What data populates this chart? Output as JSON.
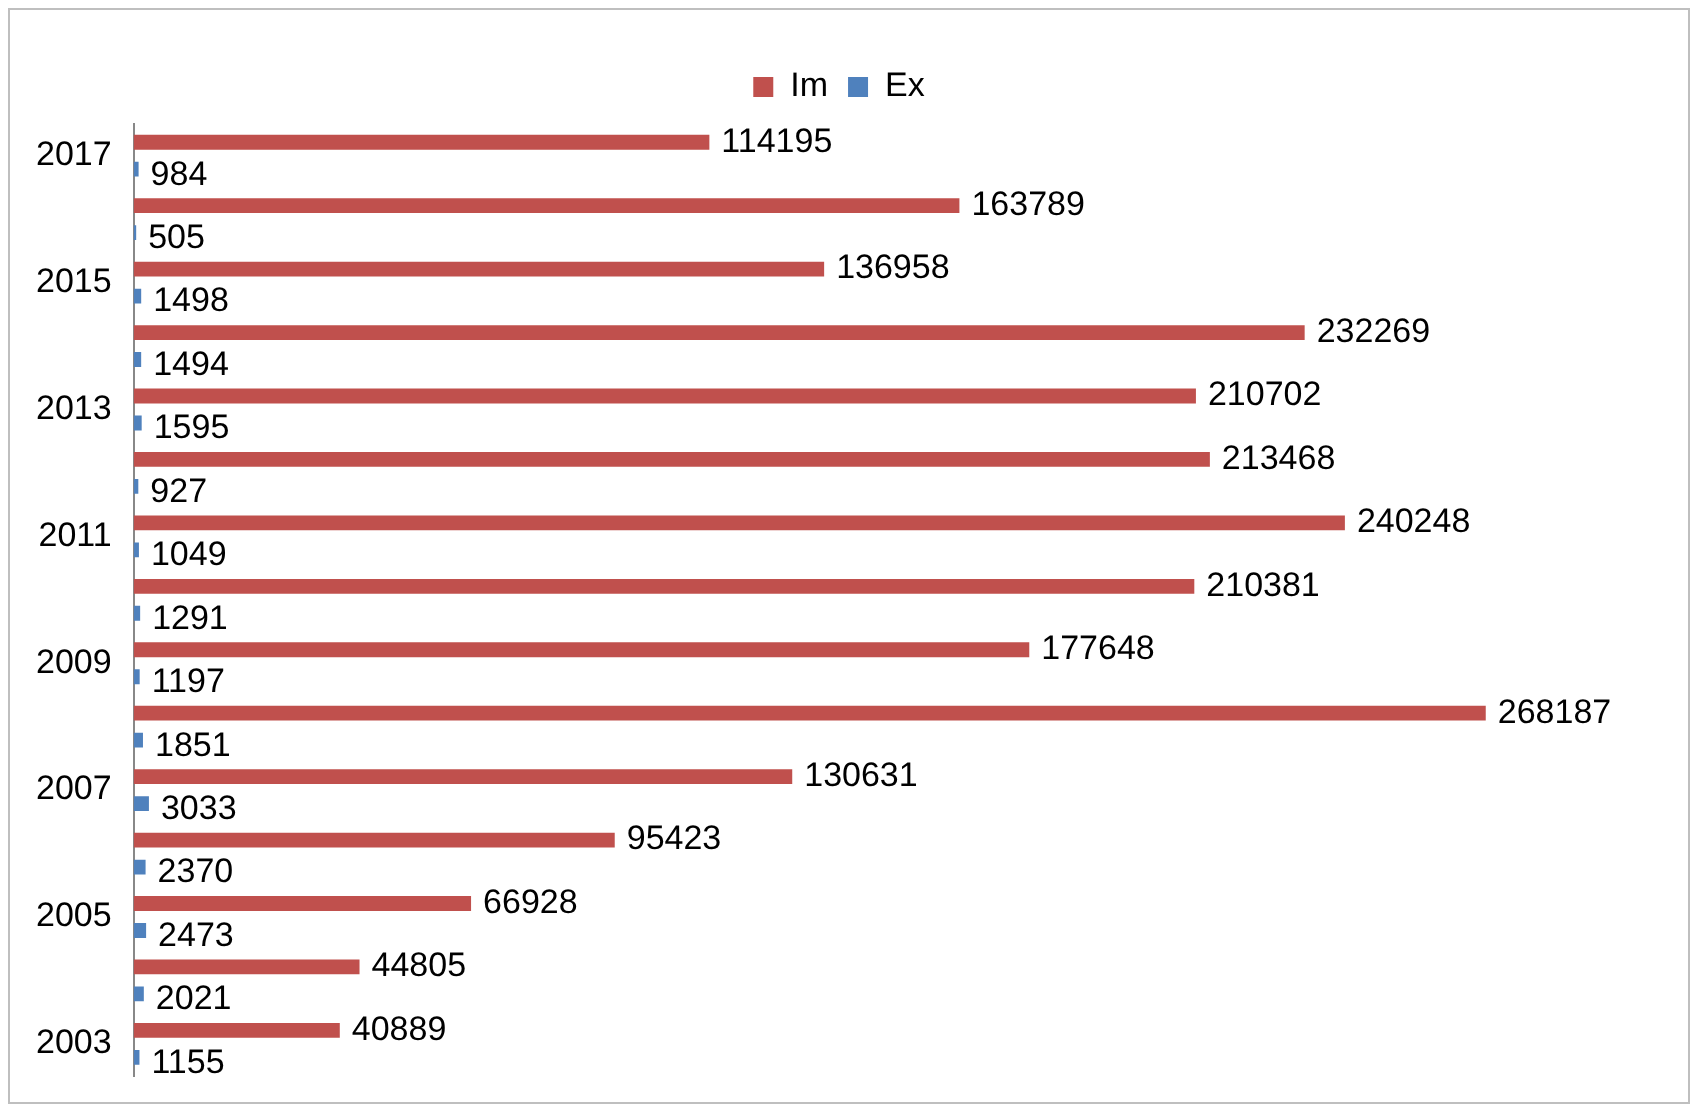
{
  "chart_data": {
    "type": "bar",
    "orientation": "horizontal",
    "categories": [
      "2017",
      null,
      "2015",
      null,
      "2013",
      null,
      "2011",
      null,
      "2009",
      null,
      "2007",
      null,
      "2005",
      null,
      "2003"
    ],
    "series": [
      {
        "name": "Im",
        "color": "#c0504d",
        "values": [
          114195,
          163789,
          136958,
          232269,
          210702,
          213468,
          240248,
          210381,
          177648,
          268187,
          130631,
          95423,
          66928,
          44805,
          40889
        ]
      },
      {
        "name": "Ex",
        "color": "#4f81bd",
        "values": [
          984,
          505,
          1498,
          1494,
          1595,
          927,
          1049,
          1291,
          1197,
          1851,
          3033,
          2370,
          2473,
          2021,
          1155
        ]
      }
    ],
    "data_labels": true,
    "legend": "top",
    "tick_labels": "y"
  }
}
